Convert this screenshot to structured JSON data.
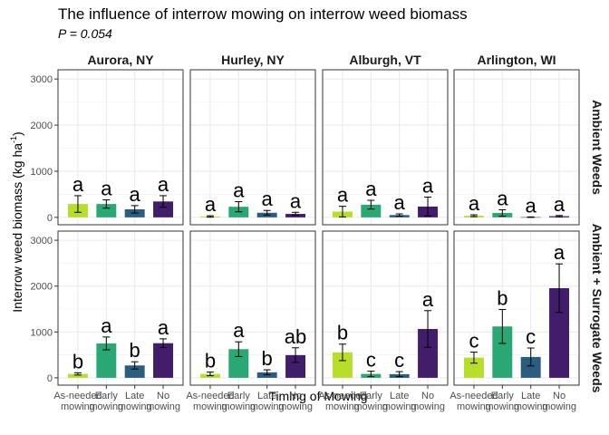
{
  "chart_data": {
    "type": "bar",
    "title": "The influence of interrow mowing on interrow weed biomass",
    "subtitle": "P = 0.054",
    "xlabel": "Timing of Mowing",
    "ylabel": "Interrow weed biomass (kg ha",
    "ylabel_sup": "-1",
    "ylabel_close": ")",
    "ylim": [
      0,
      3200
    ],
    "yticks": [
      "0",
      "1000",
      "2000",
      "3000"
    ],
    "ytick_values": [
      0,
      1000,
      2000,
      3000
    ],
    "categories": [
      [
        "As-needed",
        "mowing"
      ],
      [
        "Early",
        "mowing"
      ],
      [
        "Late",
        "mowing"
      ],
      [
        "No",
        "mowing"
      ]
    ],
    "bar_colors": [
      "#b8de29",
      "#29a876",
      "#2a5d80",
      "#411d6b"
    ],
    "columns": [
      "Aurora, NY",
      "Hurley, NY",
      "Alburgh, VT",
      "Arlington, WI"
    ],
    "rows": [
      "Ambient Weeds",
      "Ambient + Surrogate Weeds"
    ],
    "panels": [
      {
        "row": 0,
        "col": 0,
        "values": [
          290,
          290,
          175,
          345
        ],
        "errors": [
          180,
          90,
          80,
          125
        ],
        "letters": [
          "a",
          "a",
          "a",
          "a"
        ]
      },
      {
        "row": 0,
        "col": 1,
        "values": [
          20,
          230,
          100,
          75
        ],
        "errors": [
          15,
          110,
          50,
          35
        ],
        "letters": [
          "a",
          "a",
          "a",
          "a"
        ]
      },
      {
        "row": 0,
        "col": 2,
        "values": [
          125,
          275,
          50,
          235
        ],
        "errors": [
          115,
          95,
          25,
          205
        ],
        "letters": [
          "a",
          "a",
          "a",
          "a"
        ]
      },
      {
        "row": 0,
        "col": 3,
        "values": [
          35,
          95,
          5,
          25
        ],
        "errors": [
          20,
          70,
          5,
          15
        ],
        "letters": [
          "a",
          "a",
          "a",
          "a"
        ]
      },
      {
        "row": 1,
        "col": 0,
        "values": [
          85,
          750,
          270,
          755
        ],
        "errors": [
          25,
          140,
          80,
          95
        ],
        "letters": [
          "b",
          "a",
          "b",
          "a"
        ]
      },
      {
        "row": 1,
        "col": 1,
        "values": [
          85,
          625,
          120,
          495
        ],
        "errors": [
          40,
          160,
          55,
          160
        ],
        "letters": [
          "b",
          "a",
          "b",
          "ab"
        ]
      },
      {
        "row": 1,
        "col": 2,
        "values": [
          555,
          85,
          80,
          1065
        ],
        "errors": [
          180,
          60,
          55,
          400
        ],
        "letters": [
          "b",
          "c",
          "c",
          "a"
        ]
      },
      {
        "row": 1,
        "col": 3,
        "values": [
          440,
          1120,
          455,
          1955
        ],
        "errors": [
          120,
          370,
          195,
          530
        ],
        "letters": [
          "c",
          "b",
          "c",
          "a"
        ]
      }
    ]
  }
}
